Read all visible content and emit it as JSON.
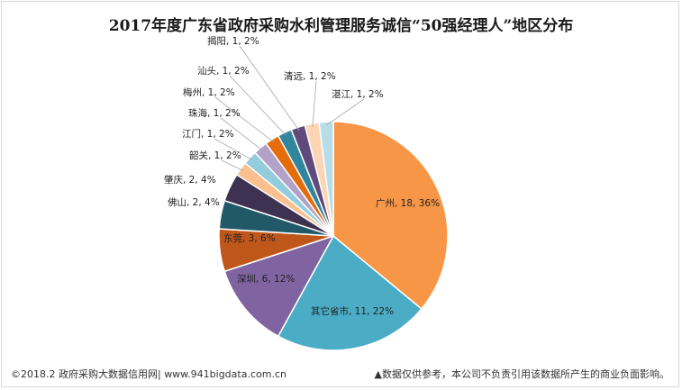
{
  "chart_data": {
    "type": "pie",
    "title": "2017年度广东省政府采购水利管理服务诚信“50强经理人”地区分布",
    "slices": [
      {
        "name": "广州",
        "value": 18,
        "percent": "36%",
        "color": "#f79646"
      },
      {
        "name": "其它省市",
        "value": 11,
        "percent": "22%",
        "color": "#4bacc6"
      },
      {
        "name": "深圳",
        "value": 6,
        "percent": "12%",
        "color": "#8064a2"
      },
      {
        "name": "东莞",
        "value": 3,
        "percent": "6%",
        "color": "#c0571a"
      },
      {
        "name": "佛山",
        "value": 2,
        "percent": "4%",
        "color": "#215968"
      },
      {
        "name": "肇庆",
        "value": 2,
        "percent": "4%",
        "color": "#3f3151"
      },
      {
        "name": "韶关",
        "value": 1,
        "percent": "2%",
        "color": "#fac090"
      },
      {
        "name": "江门",
        "value": 1,
        "percent": "2%",
        "color": "#93cddd"
      },
      {
        "name": "珠海",
        "value": 1,
        "percent": "2%",
        "color": "#b3a2c7"
      },
      {
        "name": "梅州",
        "value": 1,
        "percent": "2%",
        "color": "#e46c0a"
      },
      {
        "name": "汕头",
        "value": 1,
        "percent": "2%",
        "color": "#31859c"
      },
      {
        "name": "揭阳",
        "value": 1,
        "percent": "2%",
        "color": "#604a7b"
      },
      {
        "name": "清远",
        "value": 1,
        "percent": "2%",
        "color": "#fcd5b5"
      },
      {
        "name": "湛江",
        "value": 1,
        "percent": "2%",
        "color": "#b7dee8"
      }
    ]
  },
  "footer": {
    "source": "©2018.2 政府采购大数据信用网| www.941bigdata.com.cn",
    "disclaimer": "▲数据仅供参考，本公司不负责引用该数据所产生的商业负面影响。"
  }
}
